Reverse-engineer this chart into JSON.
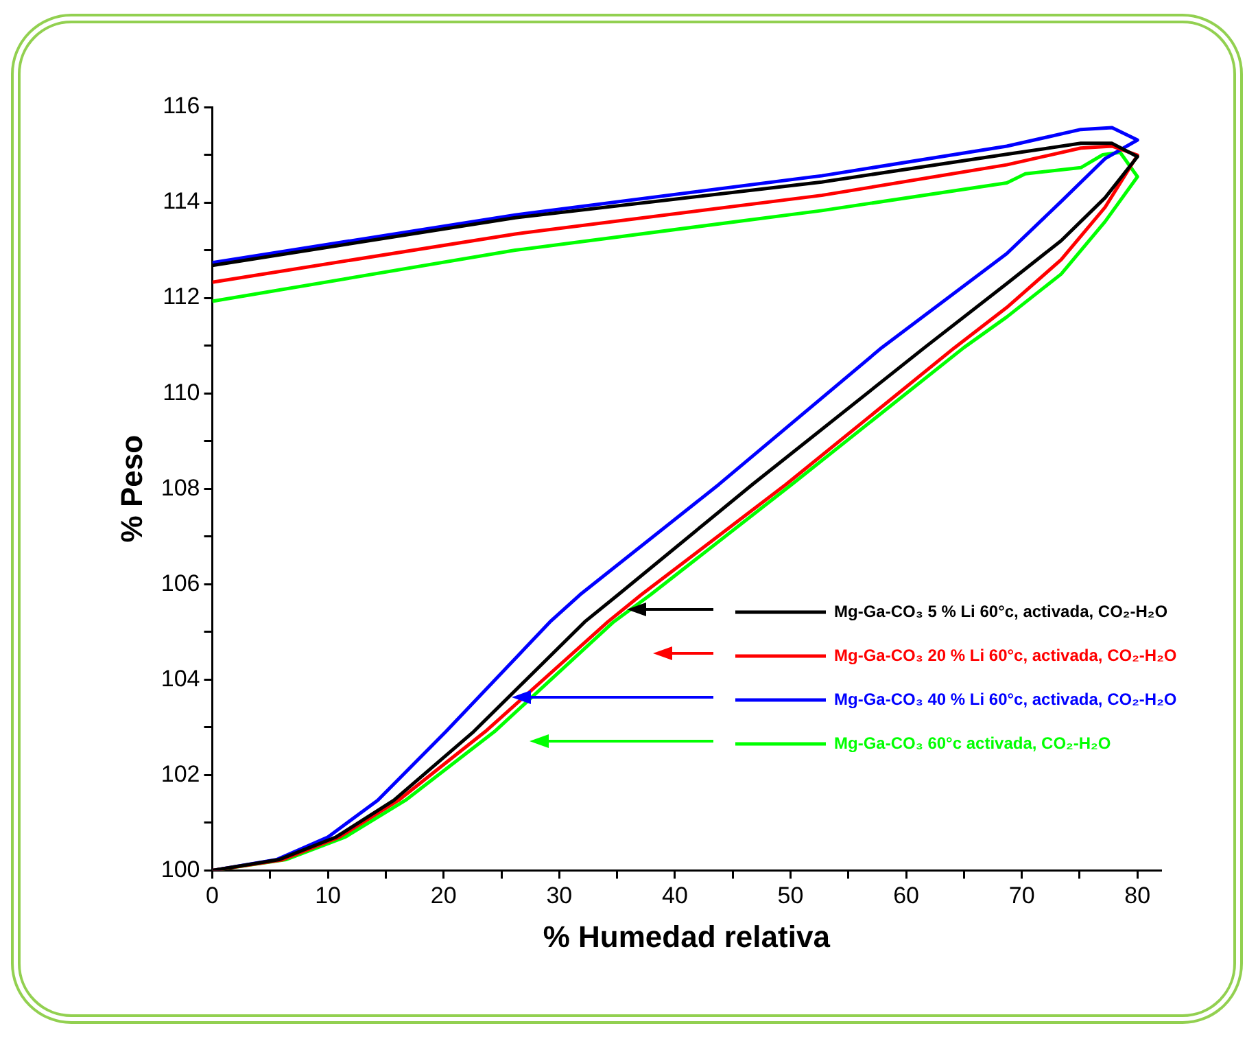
{
  "chart_data": {
    "type": "line",
    "xlabel": "% Humedad relativa",
    "ylabel": "% Peso",
    "xlim": [
      0,
      82
    ],
    "ylim": [
      100,
      116
    ],
    "xticks": [
      0,
      {
        "value": 5,
        "label": null
      },
      10,
      {
        "value": 15,
        "label": null
      },
      20,
      {
        "value": 25,
        "label": null
      },
      30,
      {
        "value": 35,
        "label": null
      },
      40,
      {
        "value": 45,
        "label": null
      },
      50,
      {
        "value": 55,
        "label": null
      },
      60,
      {
        "value": 65,
        "label": null
      },
      70,
      {
        "value": 75,
        "label": null
      },
      80
    ],
    "yticks": [
      100,
      {
        "value": 101,
        "label": null
      },
      102,
      {
        "value": 103,
        "label": null
      },
      104,
      {
        "value": 105,
        "label": null
      },
      106,
      {
        "value": 107,
        "label": null
      },
      108,
      {
        "value": 109,
        "label": null
      },
      110,
      {
        "value": 111,
        "label": null
      },
      112,
      {
        "value": 113,
        "label": null
      },
      114,
      {
        "value": 115,
        "label": null
      },
      116
    ],
    "grid": false,
    "legend": "right",
    "marker": "none",
    "line_style": "solid",
    "series": [
      {
        "name": "Mg-Ga-CO₃ 5 % Li 60°c, activada, CO₂-H₂O",
        "color": "#000000",
        "x": [
          0,
          5.8,
          10.7,
          15.7,
          22.6,
          32.2,
          35.1,
          46.7,
          61.6,
          68.7,
          73.4,
          77.2,
          80,
          77.8,
          75.1,
          68.7,
          52.7,
          26.2,
          0
        ],
        "values": [
          100,
          100.23,
          100.7,
          101.47,
          102.91,
          105.21,
          105.78,
          108.09,
          110.96,
          112.3,
          113.2,
          114.1,
          114.96,
          115.24,
          115.24,
          115.01,
          114.43,
          113.68,
          112.68
        ]
      },
      {
        "name": "Mg-Ga-CO₃ 20 % Li 60°c, activada, CO₂-H₂O",
        "color": "#ff0000",
        "x": [
          0,
          6,
          11,
          16.1,
          23.6,
          34.2,
          37.1,
          49.6,
          64.2,
          68.7,
          73.4,
          77.2,
          80,
          77.8,
          75.1,
          68.7,
          52.7,
          26.2,
          0
        ],
        "values": [
          100,
          100.22,
          100.7,
          101.47,
          102.91,
          105.21,
          105.78,
          108.09,
          110.96,
          111.8,
          112.8,
          113.9,
          114.99,
          115.18,
          115.14,
          114.79,
          114.15,
          113.34,
          112.33
        ]
      },
      {
        "name": "Mg-Ga-CO₃ 40 % Li 60°c, activada, CO₂-H₂O",
        "color": "#0000ff",
        "x": [
          0,
          5.6,
          10,
          14.3,
          20.2,
          29.2,
          31.8,
          43.8,
          57.9,
          68.7,
          73.4,
          77.2,
          80,
          77.8,
          75.1,
          68.7,
          52.7,
          26.2,
          0
        ],
        "values": [
          100,
          100.23,
          100.7,
          101.47,
          102.91,
          105.21,
          105.78,
          108.09,
          110.96,
          112.93,
          114.02,
          114.92,
          115.31,
          115.57,
          115.53,
          115.18,
          114.56,
          113.74,
          112.74
        ]
      },
      {
        "name": "Mg-Ga-CO₃ 60°c activada, CO₂-H₂O",
        "color": "#00ff00",
        "x": [
          0,
          6.4,
          11.5,
          16.7,
          24.4,
          34.7,
          37.9,
          50.1,
          65,
          68.7,
          73.4,
          77.2,
          80,
          78.5,
          77,
          75.1,
          70.3,
          68.7,
          52.7,
          26.2,
          0
        ],
        "values": [
          100,
          100.23,
          100.7,
          101.47,
          102.91,
          105.21,
          105.78,
          108.09,
          110.96,
          111.6,
          112.5,
          113.6,
          114.54,
          115.05,
          115.0,
          114.73,
          114.6,
          114.41,
          113.83,
          113.0,
          111.93
        ]
      }
    ]
  }
}
